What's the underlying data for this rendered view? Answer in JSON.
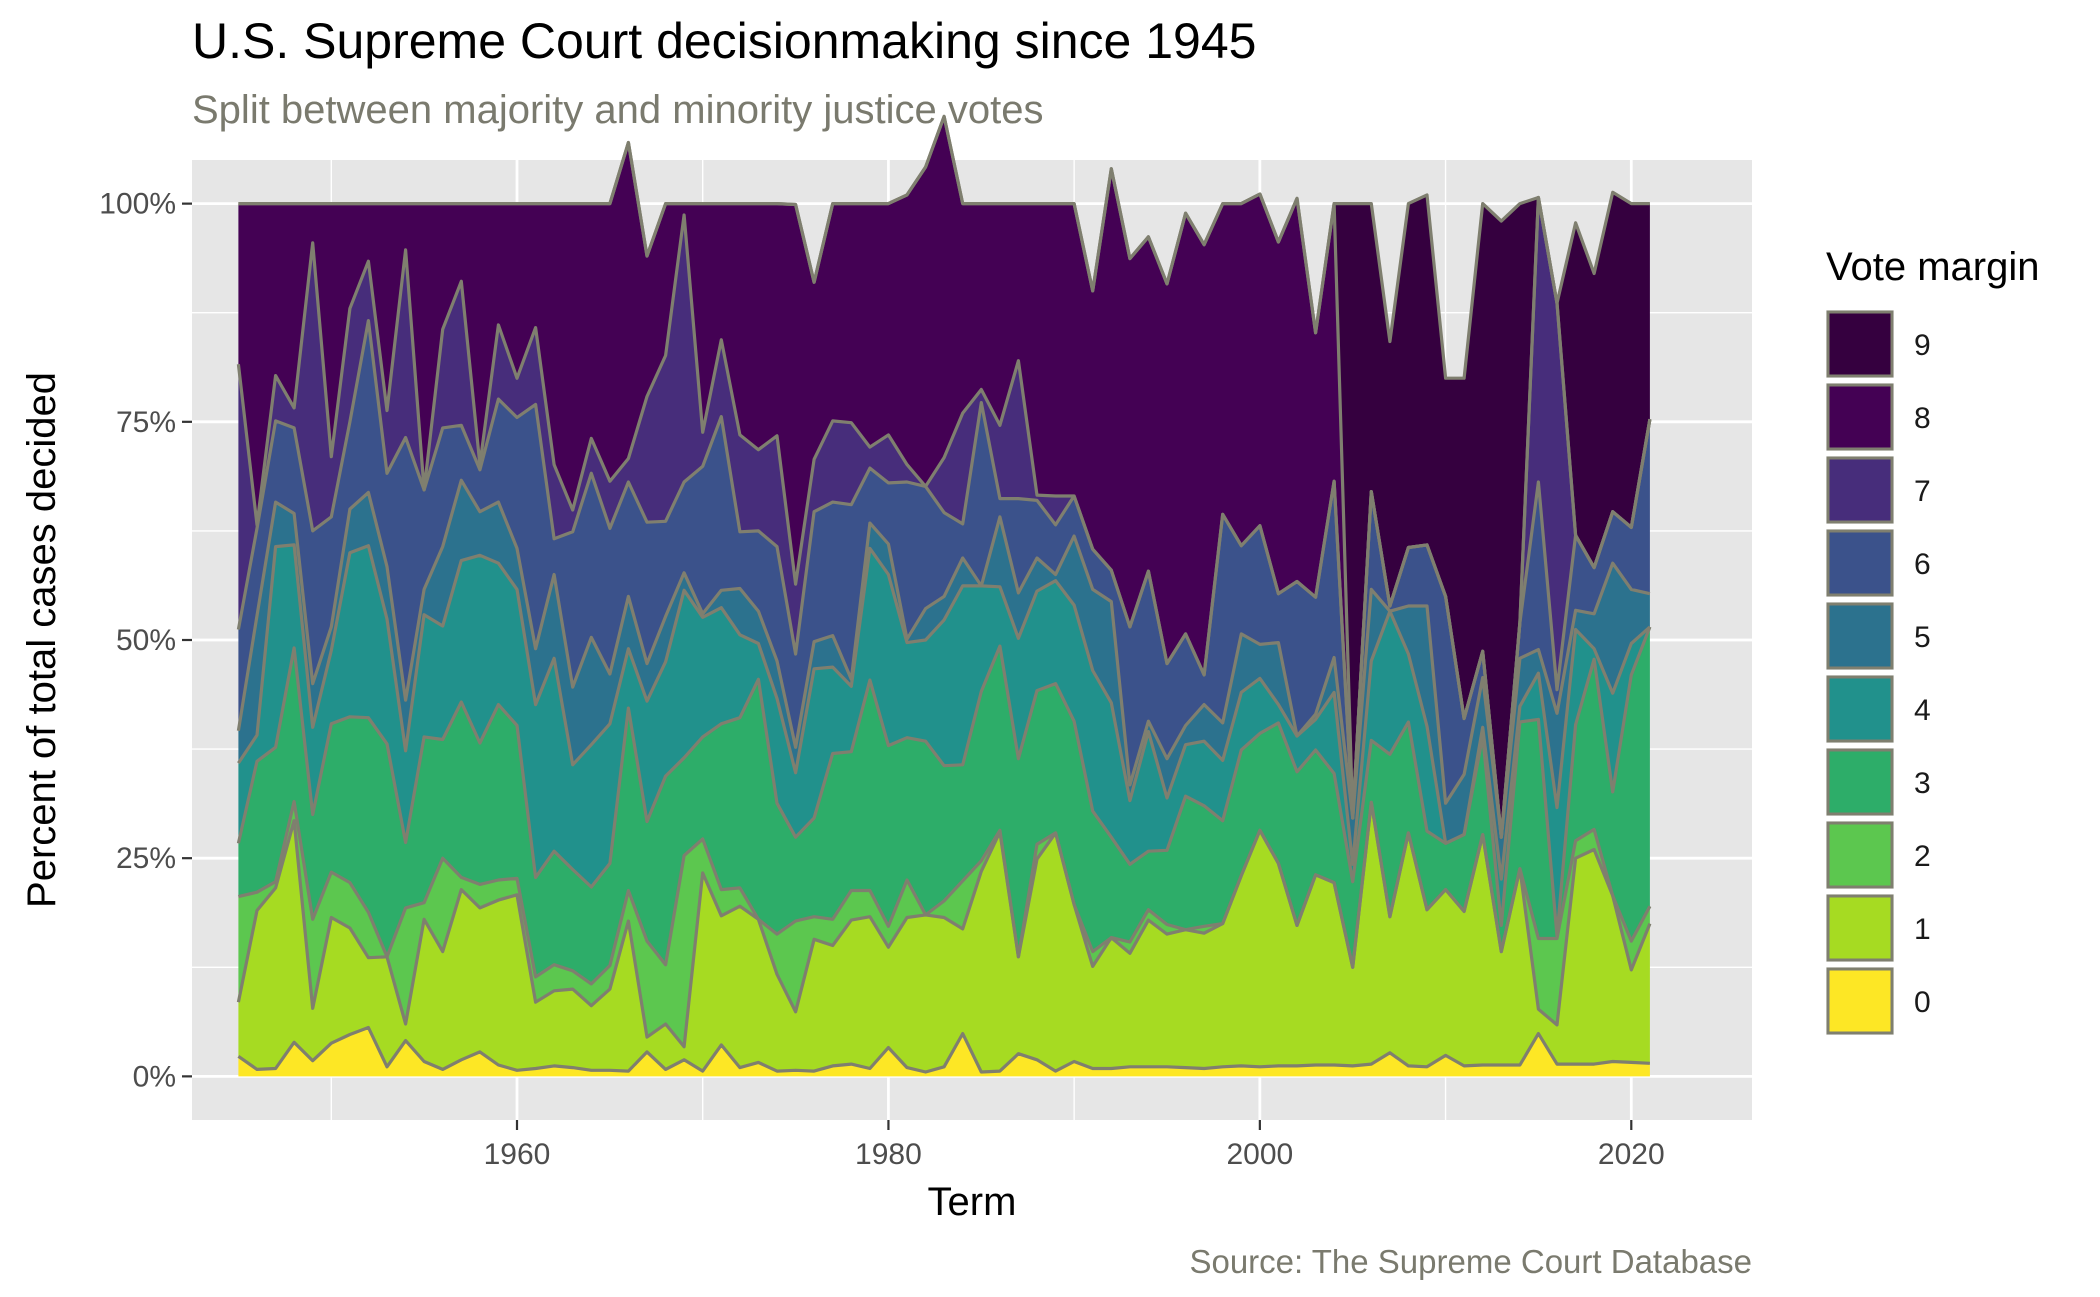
{
  "colors": {
    "panel_bg": "#E6E6E6",
    "grid": "#FFFFFF",
    "outline": "#7F7F6F",
    "subtitle": "#7A7A6E",
    "caption": "#7A7A6E"
  },
  "chart_data": {
    "type": "area",
    "stacked": true,
    "normalized": true,
    "title": "U.S. Supreme Court decisionmaking since 1945",
    "subtitle": "Split between majority and minority justice votes",
    "xlabel": "Term",
    "ylabel": "Percent of total cases decided",
    "caption": "Source: The Supreme Court Database",
    "legend_title": "Vote margin",
    "legend_position": "right",
    "grid": true,
    "xlim": [
      1942.5,
      2026.5
    ],
    "ylim": [
      -0.05,
      1.05
    ],
    "x_ticks": [
      1960,
      1980,
      2000,
      2020
    ],
    "y_ticks": [
      {
        "value": 0,
        "label": "0%"
      },
      {
        "value": 0.25,
        "label": "25%"
      },
      {
        "value": 0.5,
        "label": "50%"
      },
      {
        "value": 0.75,
        "label": "75%"
      },
      {
        "value": 1,
        "label": "100%"
      }
    ],
    "x": [
      1945,
      1946,
      1947,
      1948,
      1949,
      1950,
      1951,
      1952,
      1953,
      1954,
      1955,
      1956,
      1957,
      1958,
      1959,
      1960,
      1961,
      1962,
      1963,
      1964,
      1965,
      1966,
      1967,
      1968,
      1969,
      1970,
      1971,
      1972,
      1973,
      1974,
      1975,
      1976,
      1977,
      1978,
      1979,
      1980,
      1981,
      1982,
      1983,
      1984,
      1985,
      1986,
      1987,
      1988,
      1989,
      1990,
      1991,
      1992,
      1993,
      1994,
      1995,
      1996,
      1997,
      1998,
      1999,
      2000,
      2001,
      2002,
      2003,
      2004,
      2005,
      2006,
      2007,
      2008,
      2009,
      2010,
      2011,
      2012,
      2013,
      2014,
      2015,
      2016,
      2017,
      2018,
      2019,
      2020,
      2021
    ],
    "series": [
      {
        "name": "0",
        "color": "#FDE725",
        "values": [
          0.023,
          0.008,
          0.009,
          0.039,
          0.018,
          0.038,
          0.048,
          0.056,
          0.011,
          0.041,
          0.017,
          0.008,
          0.019,
          0.028,
          0.013,
          0.007,
          0.009,
          0.012,
          0.01,
          0.007,
          0.007,
          0.006,
          0.028,
          0.008,
          0.019,
          0.006,
          0.036,
          0.01,
          0.016,
          0.006,
          0.007,
          0.006,
          0.012,
          0.014,
          0.009,
          0.033,
          0.01,
          0.005,
          0.011,
          0.049,
          0.005,
          0.006,
          0.026,
          0.019,
          0.006,
          0.017,
          0.009,
          0.009,
          0.011,
          0.011,
          0.011,
          0.01,
          0.009,
          0.011,
          0.012,
          0.011,
          0.012,
          0.012,
          0.013,
          0.013,
          0.012,
          0.014,
          0.027,
          0.012,
          0.011,
          0.024,
          0.012,
          0.013,
          0.013,
          0.013,
          0.049,
          0.014,
          0.014,
          0.014,
          0.017,
          0.016,
          0.015
        ]
      },
      {
        "name": "1",
        "color": "#A6DB22",
        "values": [
          0.062,
          0.182,
          0.207,
          0.254,
          0.06,
          0.144,
          0.122,
          0.08,
          0.126,
          0.019,
          0.163,
          0.135,
          0.195,
          0.165,
          0.189,
          0.201,
          0.076,
          0.086,
          0.09,
          0.074,
          0.093,
          0.172,
          0.017,
          0.052,
          0.015,
          0.227,
          0.148,
          0.185,
          0.164,
          0.111,
          0.067,
          0.151,
          0.138,
          0.165,
          0.174,
          0.115,
          0.172,
          0.18,
          0.171,
          0.12,
          0.23,
          0.274,
          0.111,
          0.23,
          0.273,
          0.18,
          0.117,
          0.15,
          0.13,
          0.168,
          0.152,
          0.158,
          0.155,
          0.164,
          0.218,
          0.271,
          0.232,
          0.161,
          0.218,
          0.209,
          0.113,
          0.3,
          0.156,
          0.267,
          0.18,
          0.19,
          0.177,
          0.264,
          0.13,
          0.225,
          0.028,
          0.045,
          0.236,
          0.246,
          0.19,
          0.106,
          0.16
        ]
      },
      {
        "name": "2",
        "color": "#5CC74F",
        "values": [
          0.121,
          0.021,
          0.007,
          0.022,
          0.102,
          0.052,
          0.052,
          0.052,
          0.0,
          0.133,
          0.019,
          0.107,
          0.014,
          0.027,
          0.023,
          0.019,
          0.029,
          0.03,
          0.021,
          0.025,
          0.027,
          0.035,
          0.11,
          0.068,
          0.219,
          0.039,
          0.03,
          0.021,
          0.0,
          0.046,
          0.104,
          0.026,
          0.03,
          0.034,
          0.03,
          0.024,
          0.043,
          0.0,
          0.019,
          0.055,
          0.012,
          0.002,
          0.0,
          0.017,
          0.0,
          0.0,
          0.017,
          0.0,
          0.013,
          0.012,
          0.011,
          0.0,
          0.008,
          0.0,
          0.0,
          0.0,
          0.0,
          0.0,
          0.0,
          0.0,
          0.0,
          0.0,
          0.0,
          0.0,
          0.0,
          0.0,
          0.0,
          0.0,
          0.0,
          0.0,
          0.081,
          0.099,
          0.02,
          0.023,
          0.0,
          0.033,
          0.02
        ]
      },
      {
        "name": "3",
        "color": "#2DAD69",
        "values": [
          0.061,
          0.15,
          0.154,
          0.176,
          0.12,
          0.17,
          0.19,
          0.223,
          0.244,
          0.075,
          0.19,
          0.136,
          0.201,
          0.162,
          0.201,
          0.175,
          0.114,
          0.13,
          0.116,
          0.111,
          0.117,
          0.209,
          0.137,
          0.216,
          0.112,
          0.117,
          0.19,
          0.195,
          0.275,
          0.15,
          0.096,
          0.113,
          0.19,
          0.159,
          0.241,
          0.207,
          0.163,
          0.199,
          0.155,
          0.133,
          0.194,
          0.211,
          0.227,
          0.176,
          0.171,
          0.21,
          0.161,
          0.115,
          0.089,
          0.067,
          0.085,
          0.153,
          0.138,
          0.118,
          0.144,
          0.111,
          0.161,
          0.176,
          0.143,
          0.125,
          0.098,
          0.071,
          0.186,
          0.127,
          0.09,
          0.053,
          0.088,
          0.113,
          0.03,
          0.168,
          0.251,
          0.003,
          0.133,
          0.195,
          0.119,
          0.305,
          0.32
        ]
      },
      {
        "name": "4",
        "color": "#21918C",
        "values": [
          0.092,
          0.03,
          0.23,
          0.118,
          0.1,
          0.084,
          0.188,
          0.197,
          0.143,
          0.105,
          0.14,
          0.13,
          0.162,
          0.215,
          0.162,
          0.156,
          0.198,
          0.221,
          0.12,
          0.163,
          0.16,
          0.068,
          0.138,
          0.131,
          0.192,
          0.137,
          0.133,
          0.095,
          0.041,
          0.12,
          0.074,
          0.171,
          0.099,
          0.075,
          0.151,
          0.196,
          0.109,
          0.116,
          0.167,
          0.205,
          0.121,
          0.068,
          0.138,
          0.114,
          0.118,
          0.133,
          0.161,
          0.154,
          0.073,
          0.137,
          0.06,
          0.059,
          0.074,
          0.069,
          0.066,
          0.063,
          0.021,
          0.041,
          0.035,
          0.093,
          0.02,
          0.091,
          0.164,
          0.078,
          0.12,
          0.0,
          0.0,
          0.01,
          0.053,
          0.018,
          0.053,
          0.147,
          0.109,
          0.012,
          0.113,
          0.036,
          0.0
        ]
      },
      {
        "name": "5",
        "color": "#2C728E",
        "values": [
          0.037,
          0.137,
          0.051,
          0.036,
          0.05,
          0.027,
          0.05,
          0.061,
          0.06,
          0.058,
          0.029,
          0.091,
          0.092,
          0.05,
          0.07,
          0.047,
          0.064,
          0.096,
          0.089,
          0.123,
          0.057,
          0.06,
          0.043,
          0.052,
          0.02,
          0.004,
          0.02,
          0.053,
          0.037,
          0.043,
          0.029,
          0.031,
          0.036,
          0.008,
          0.029,
          0.035,
          0.004,
          0.036,
          0.027,
          0.032,
          0.0,
          0.08,
          0.052,
          0.038,
          0.007,
          0.079,
          0.093,
          0.116,
          0.018,
          0.012,
          0.045,
          0.022,
          0.042,
          0.043,
          0.067,
          0.039,
          0.071,
          0.0,
          0.006,
          0.04,
          0.053,
          0.082,
          0.0,
          0.055,
          0.138,
          0.046,
          0.069,
          0.057,
          0.048,
          0.055,
          0.027,
          0.108,
          0.022,
          0.04,
          0.149,
          0.062,
          0.038
        ]
      },
      {
        "name": "6",
        "color": "#3B528B",
        "values": [
          0.116,
          0.1,
          0.093,
          0.098,
          0.175,
          0.126,
          0.1,
          0.197,
          0.107,
          0.301,
          0.114,
          0.136,
          0.063,
          0.048,
          0.118,
          0.15,
          0.28,
          0.041,
          0.178,
          0.188,
          0.167,
          0.131,
          0.162,
          0.109,
          0.104,
          0.169,
          0.199,
          0.065,
          0.092,
          0.131,
          0.107,
          0.149,
          0.153,
          0.2,
          0.063,
          0.07,
          0.18,
          0.14,
          0.096,
          0.039,
          0.21,
          0.021,
          0.108,
          0.066,
          0.057,
          0.046,
          0.046,
          0.036,
          0.181,
          0.172,
          0.109,
          0.105,
          0.034,
          0.239,
          0.101,
          0.136,
          0.056,
          0.177,
          0.134,
          0.202,
          0.0,
          0.112,
          0.006,
          0.067,
          0.07,
          0.237,
          0.064,
          0.03,
          0.0,
          0.041,
          0.192,
          0.027,
          0.086,
          0.053,
          0.059,
          0.071,
          0.2
        ]
      },
      {
        "name": "7",
        "color": "#472D7B",
        "values": [
          0.304,
          0.004,
          0.052,
          0.023,
          0.33,
          0.069,
          0.13,
          0.068,
          0.072,
          0.215,
          0.0,
          0.113,
          0.165,
          0.006,
          0.085,
          0.045,
          0.088,
          0.085,
          0.025,
          0.04,
          0.054,
          0.027,
          0.144,
          0.19,
          0.306,
          0.039,
          0.088,
          0.111,
          0.093,
          0.127,
          0.08,
          0.06,
          0.093,
          0.094,
          0.024,
          0.055,
          0.02,
          0.0,
          0.063,
          0.127,
          0.015,
          0.084,
          0.158,
          0.006,
          0.033,
          0.0,
          0.0,
          0.0,
          0.0,
          0.0,
          0.0,
          0.0,
          0.0,
          0.0,
          0.0,
          0.0,
          0.0,
          0.0,
          0.0,
          0.0,
          0.0,
          0.0,
          0.0,
          0.0,
          0.0,
          0.0,
          0.0,
          0.0,
          0.0,
          0.0,
          0.326,
          0.443,
          0.0,
          0.0,
          0.0,
          0.0,
          0.0
        ]
      },
      {
        "name": "8",
        "color": "#440154",
        "values": [
          0.184,
          0.368,
          0.197,
          0.234,
          0.045,
          0.29,
          0.12,
          0.066,
          0.237,
          0.053,
          0.328,
          0.144,
          0.089,
          0.299,
          0.139,
          0.2,
          0.142,
          0.299,
          0.351,
          0.269,
          0.318,
          0.362,
          0.161,
          0.174,
          0.013,
          0.262,
          0.156,
          0.265,
          0.282,
          0.266,
          0.435,
          0.203,
          0.249,
          0.251,
          0.279,
          0.265,
          0.309,
          0.366,
          0.391,
          0.24,
          0.213,
          0.254,
          0.18,
          0.334,
          0.335,
          0.335,
          0.296,
          0.46,
          0.422,
          0.383,
          0.435,
          0.482,
          0.493,
          0.356,
          0.392,
          0.38,
          0.403,
          0.439,
          0.303,
          0.318,
          0.0,
          0.0,
          0.0,
          0.0,
          0.0,
          0.0,
          0.0,
          0.0,
          0.0,
          0.0,
          0.0,
          0.0,
          0.0,
          0.0,
          0.0,
          0.0,
          0.0
        ]
      },
      {
        "name": "9",
        "color": "#35003F",
        "values": [
          0.0,
          0.0,
          0.0,
          0.0,
          0.0,
          0.0,
          0.0,
          0.0,
          0.0,
          0.0,
          0.0,
          0.0,
          0.0,
          0.0,
          0.0,
          0.0,
          0.0,
          0.0,
          0.0,
          0.0,
          0.0,
          0.0,
          0.0,
          0.0,
          0.0,
          0.0,
          0.0,
          0.0,
          0.0,
          0.0,
          0.0,
          0.0,
          0.0,
          0.0,
          0.0,
          0.0,
          0.0,
          0.0,
          0.0,
          0.0,
          0.0,
          0.0,
          0.0,
          0.0,
          0.0,
          0.0,
          0.0,
          0.0,
          0.0,
          0.0,
          0.0,
          0.0,
          0.0,
          0.0,
          0.0,
          0.0,
          0.0,
          0.0,
          0.0,
          0.0,
          0.704,
          0.33,
          0.303,
          0.394,
          0.401,
          0.25,
          0.39,
          0.513,
          0.706,
          0.48,
          0.0,
          0.0,
          0.358,
          0.337,
          0.366,
          0.371,
          0.247
        ]
      }
    ]
  }
}
